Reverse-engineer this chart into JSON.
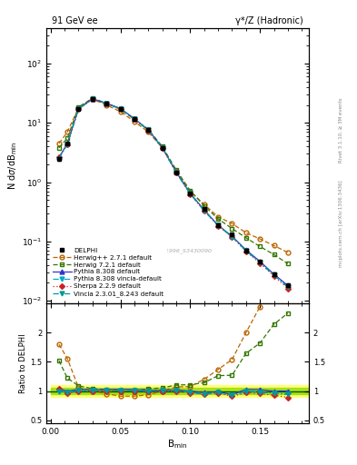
{
  "title_left": "91 GeV ee",
  "title_right": "γ*/Z (Hadronic)",
  "ylabel_main": "N dσ/dB$_{min}$",
  "ylabel_ratio": "Ratio to DELPHI",
  "xlabel": "B$_{min}$",
  "right_label_1": "Rivet 3.1.10, ≥ 3M events",
  "right_label_2": "mcplots.cern.ch [arXiv:1306.3436]",
  "watermark": "DELPHI_1996_S3430090",
  "x": [
    0.006,
    0.012,
    0.02,
    0.03,
    0.04,
    0.05,
    0.06,
    0.07,
    0.08,
    0.09,
    0.1,
    0.11,
    0.12,
    0.13,
    0.14,
    0.15,
    0.16,
    0.17
  ],
  "delphi": [
    2.5,
    4.5,
    17.0,
    25.0,
    21.0,
    17.0,
    11.5,
    7.5,
    3.8,
    1.45,
    0.65,
    0.35,
    0.19,
    0.13,
    0.07,
    0.045,
    0.028,
    0.018
  ],
  "herwig_pp": [
    4.5,
    7.0,
    18.0,
    25.0,
    20.0,
    15.5,
    10.5,
    7.0,
    3.8,
    1.55,
    0.7,
    0.42,
    0.26,
    0.2,
    0.14,
    0.11,
    0.085,
    0.065
  ],
  "herwig7": [
    3.8,
    5.5,
    18.5,
    26.0,
    21.5,
    17.0,
    11.5,
    7.8,
    4.0,
    1.6,
    0.72,
    0.4,
    0.24,
    0.165,
    0.115,
    0.082,
    0.06,
    0.042
  ],
  "pythia8": [
    2.6,
    4.5,
    17.5,
    25.5,
    21.5,
    17.5,
    11.8,
    7.6,
    3.85,
    1.48,
    0.65,
    0.34,
    0.188,
    0.122,
    0.072,
    0.046,
    0.028,
    0.018
  ],
  "pythia8_vincia": [
    2.5,
    4.4,
    17.2,
    25.2,
    21.2,
    17.2,
    11.6,
    7.5,
    3.82,
    1.46,
    0.64,
    0.33,
    0.185,
    0.12,
    0.07,
    0.044,
    0.027,
    0.017
  ],
  "sherpa": [
    2.6,
    4.3,
    17.0,
    25.0,
    21.0,
    17.0,
    11.5,
    7.4,
    3.8,
    1.45,
    0.63,
    0.33,
    0.184,
    0.118,
    0.068,
    0.043,
    0.026,
    0.016
  ],
  "vincia": [
    2.5,
    4.4,
    17.2,
    25.2,
    21.2,
    17.2,
    11.6,
    7.5,
    3.82,
    1.46,
    0.64,
    0.33,
    0.185,
    0.12,
    0.07,
    0.044,
    0.027,
    0.017
  ],
  "delphi_err": [
    0.15,
    0.2,
    0.5,
    0.6,
    0.5,
    0.4,
    0.3,
    0.2,
    0.1,
    0.05,
    0.025,
    0.015,
    0.01,
    0.008,
    0.005,
    0.003,
    0.002,
    0.001
  ],
  "colors": {
    "delphi": "#000000",
    "herwig_pp": "#bb6600",
    "herwig7": "#337700",
    "pythia8": "#3333cc",
    "pythia8_vincia": "#00aacc",
    "sherpa": "#cc2222",
    "vincia": "#009999"
  },
  "ylim_main": [
    0.009,
    400
  ],
  "ylim_ratio": [
    0.45,
    2.5
  ],
  "xlim": [
    -0.003,
    0.185
  ]
}
